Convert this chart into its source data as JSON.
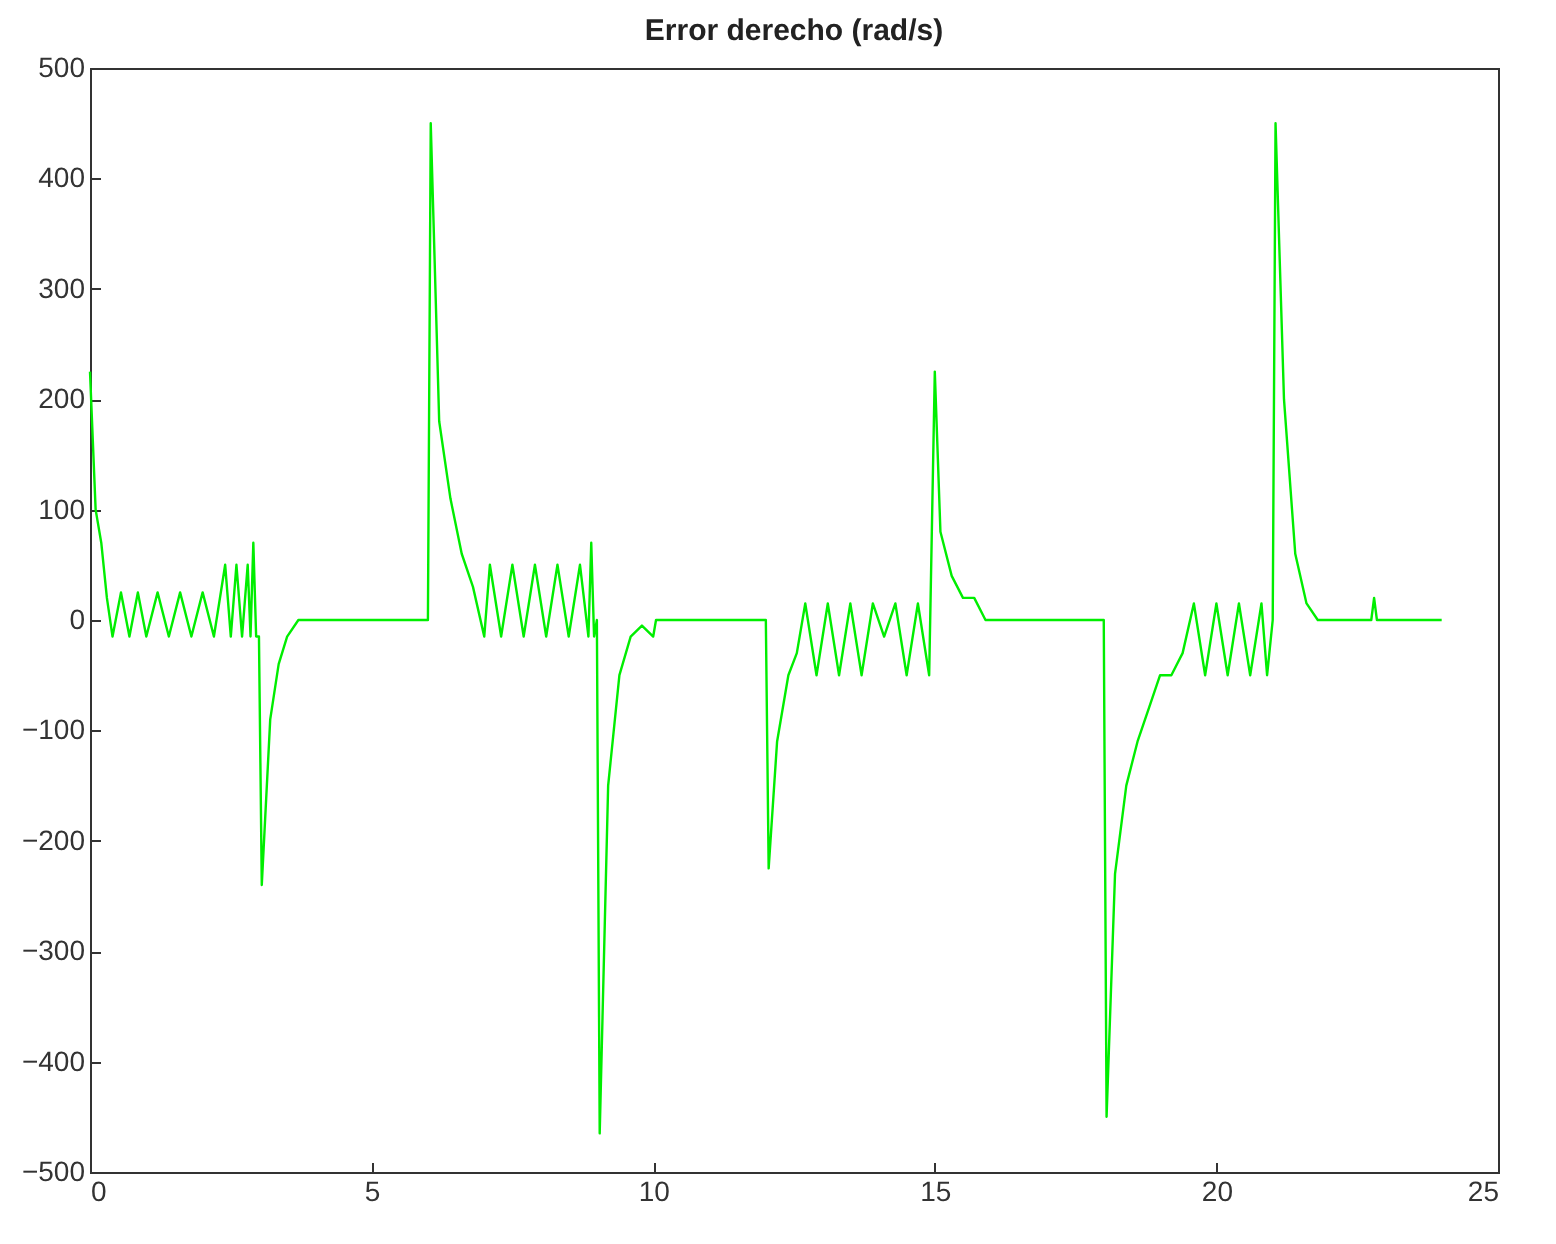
{
  "chart_data": {
    "type": "line",
    "title": "Error derecho (rad/s)",
    "xlim": [
      0,
      25
    ],
    "xticks": [
      0,
      5,
      10,
      15,
      20,
      25
    ],
    "ylim": [
      -500,
      500
    ],
    "yticks": [
      -500,
      -400,
      -300,
      -200,
      -100,
      0,
      100,
      200,
      300,
      400,
      500
    ],
    "grid": false,
    "marker": "none",
    "line_style": "solid",
    "series": [
      {
        "color": "#00ee00",
        "x": [
          0,
          0.1,
          0.2,
          0.3,
          0.4,
          0.55,
          0.7,
          0.85,
          1.0,
          1.2,
          1.4,
          1.6,
          1.8,
          2.0,
          2.2,
          2.4,
          2.5,
          2.6,
          2.7,
          2.8,
          2.85,
          2.9,
          2.95,
          3.0,
          3.05,
          3.2,
          3.35,
          3.5,
          3.7,
          6.0,
          6.05,
          6.2,
          6.4,
          6.6,
          6.8,
          7.0,
          7.1,
          7.3,
          7.5,
          7.7,
          7.9,
          8.1,
          8.3,
          8.5,
          8.7,
          8.85,
          8.9,
          8.95,
          9.0,
          9.05,
          9.2,
          9.4,
          9.6,
          9.8,
          10.0,
          10.05,
          10.2,
          12.0,
          12.05,
          12.2,
          12.4,
          12.55,
          12.7,
          12.9,
          13.1,
          13.3,
          13.5,
          13.7,
          13.9,
          14.1,
          14.3,
          14.5,
          14.7,
          14.9,
          15.0,
          15.1,
          15.3,
          15.5,
          15.7,
          15.9,
          18.0,
          18.05,
          18.2,
          18.4,
          18.6,
          18.8,
          19.0,
          19.2,
          19.4,
          19.6,
          19.8,
          20.0,
          20.2,
          20.4,
          20.6,
          20.8,
          20.9,
          21.0,
          21.05,
          21.2,
          21.4,
          21.6,
          21.8,
          22.75,
          22.8,
          22.85,
          24.0
        ],
        "values": [
          225,
          100,
          70,
          20,
          -15,
          25,
          -15,
          25,
          -15,
          25,
          -15,
          25,
          -15,
          25,
          -15,
          50,
          -15,
          50,
          -15,
          50,
          -15,
          70,
          -15,
          -15,
          -240,
          -90,
          -40,
          -15,
          0,
          0,
          450,
          180,
          110,
          60,
          30,
          -15,
          50,
          -15,
          50,
          -15,
          50,
          -15,
          50,
          -15,
          50,
          -15,
          70,
          -15,
          0,
          -465,
          -150,
          -50,
          -15,
          -5,
          -15,
          0,
          0,
          0,
          -225,
          -110,
          -50,
          -30,
          15,
          -50,
          15,
          -50,
          15,
          -50,
          15,
          -15,
          15,
          -50,
          15,
          -50,
          225,
          80,
          40,
          20,
          20,
          0,
          0,
          -450,
          -230,
          -150,
          -110,
          -80,
          -50,
          -50,
          -30,
          15,
          -50,
          15,
          -50,
          15,
          -50,
          15,
          -50,
          0,
          450,
          200,
          60,
          15,
          0,
          0,
          20,
          0,
          0
        ]
      }
    ]
  }
}
